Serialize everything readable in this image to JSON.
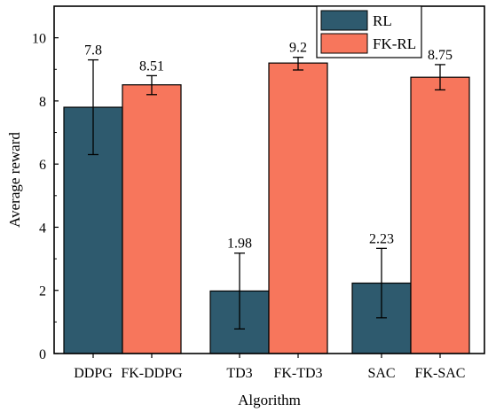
{
  "chart_data": {
    "type": "bar",
    "title": "",
    "xlabel": "Algorithm",
    "ylabel": "Average reward",
    "ylim": [
      0,
      11
    ],
    "yticks": [
      0,
      2,
      4,
      6,
      8,
      10
    ],
    "grid": false,
    "legend_position": "top-right",
    "categories": [
      "DDPG",
      "FK-DDPG",
      "TD3",
      "FK-TD3",
      "SAC",
      "FK-SAC"
    ],
    "bars": [
      {
        "category": "DDPG",
        "series": "RL",
        "value": 7.8,
        "err_low": 6.3,
        "err_high": 9.3,
        "label": "7.8"
      },
      {
        "category": "FK-DDPG",
        "series": "FK-RL",
        "value": 8.51,
        "err_low": 8.2,
        "err_high": 8.8,
        "label": "8.51"
      },
      {
        "category": "TD3",
        "series": "RL",
        "value": 1.98,
        "err_low": 0.78,
        "err_high": 3.18,
        "label": "1.98"
      },
      {
        "category": "FK-TD3",
        "series": "FK-RL",
        "value": 9.2,
        "err_low": 8.98,
        "err_high": 9.38,
        "label": "9.2"
      },
      {
        "category": "SAC",
        "series": "RL",
        "value": 2.23,
        "err_low": 1.13,
        "err_high": 3.33,
        "label": "2.23"
      },
      {
        "category": "FK-SAC",
        "series": "FK-RL",
        "value": 8.75,
        "err_low": 8.35,
        "err_high": 9.15,
        "label": "8.75"
      }
    ],
    "series": [
      {
        "name": "RL",
        "color": "#2e5a6e"
      },
      {
        "name": "FK-RL",
        "color": "#f7765c"
      }
    ]
  }
}
